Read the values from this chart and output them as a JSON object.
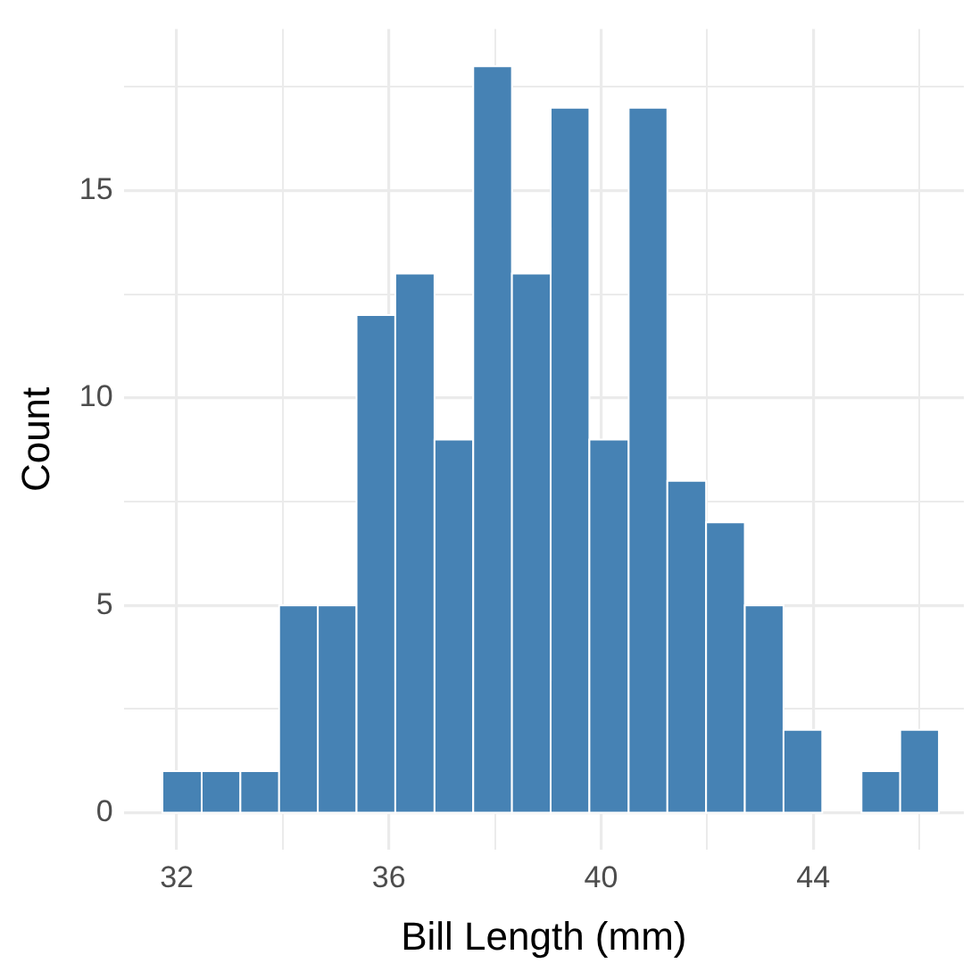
{
  "chart_data": {
    "type": "histogram",
    "xlabel": "Bill Length (mm)",
    "ylabel": "Count",
    "color": "#4682b4",
    "bins": [
      31.73,
      32.47,
      33.2,
      33.93,
      34.66,
      35.39,
      36.12,
      36.86,
      37.59,
      38.32,
      39.05,
      39.78,
      40.52,
      41.25,
      41.98,
      42.71,
      43.44,
      44.17,
      44.91,
      45.64,
      46.37
    ],
    "values": [
      1,
      1,
      1,
      5,
      5,
      12,
      13,
      9,
      18,
      13,
      17,
      9,
      17,
      8,
      7,
      5,
      2,
      0,
      1,
      2
    ],
    "xlim": [
      31.0,
      46.84
    ],
    "ylim": [
      -0.9,
      18.9
    ],
    "xticks": [
      32,
      {
        "value": 34,
        "label": null
      },
      36,
      {
        "value": 38,
        "label": null
      },
      40,
      {
        "value": 42,
        "label": null
      },
      44,
      {
        "value": 46,
        "label": null
      }
    ],
    "yticks": [
      0,
      {
        "value": 2.5,
        "label": null
      },
      5,
      {
        "value": 7.5,
        "label": null
      },
      10,
      {
        "value": 12.5,
        "label": null
      },
      15,
      {
        "value": 17.5,
        "label": null
      }
    ],
    "grid": true,
    "legend": false
  }
}
